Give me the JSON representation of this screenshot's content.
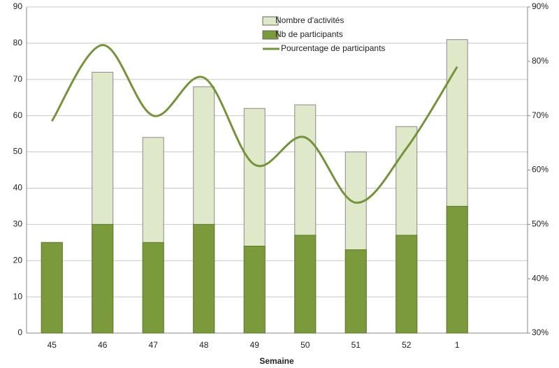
{
  "chart_data": {
    "type": "bar",
    "x_label": "Semaine",
    "categories": [
      "45",
      "46",
      "47",
      "48",
      "49",
      "50",
      "51",
      "52",
      "1"
    ],
    "series": [
      {
        "name": "Nombre d'activités",
        "color": "#dfe8c8",
        "values": [
          25,
          72,
          54,
          68,
          62,
          63,
          50,
          57,
          81
        ]
      },
      {
        "name": "Nb de participants",
        "color": "#7a9a3c",
        "values": [
          25,
          30,
          25,
          30,
          24,
          27,
          23,
          27,
          35
        ]
      },
      {
        "name": "Pourcentage de participants",
        "color": "#76923c",
        "axis": "y2",
        "type": "line",
        "values": [
          69,
          83,
          70,
          77,
          61,
          66,
          54,
          64,
          79
        ]
      }
    ],
    "ylim": [
      0,
      90
    ],
    "yticks": [
      0,
      10,
      20,
      30,
      40,
      50,
      60,
      70,
      80,
      90
    ],
    "y2lim": [
      30,
      90
    ],
    "y2ticks": [
      {
        "value": 30,
        "label": "30%"
      },
      {
        "value": 40,
        "label": "40%"
      },
      {
        "value": 50,
        "label": "50%"
      },
      {
        "value": 60,
        "label": "60%"
      },
      {
        "value": 70,
        "label": "70%"
      },
      {
        "value": 80,
        "label": "80%"
      },
      {
        "value": 90,
        "label": "90%"
      }
    ],
    "grid": true
  }
}
